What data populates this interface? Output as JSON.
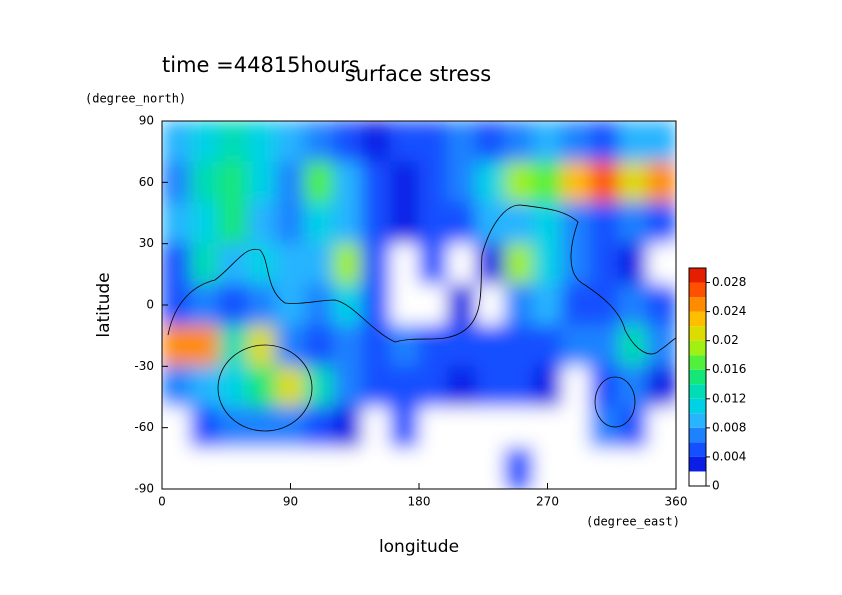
{
  "chart_data": {
    "type": "contour",
    "title": "surface stress",
    "subtitle": "time =44815hours",
    "xlabel": "longitude",
    "xunit": "(degree_east)",
    "ylabel": "latitude",
    "yunit": "(degree_north)",
    "xlim": [
      0,
      360
    ],
    "xticks": [
      0,
      90,
      180,
      270,
      360
    ],
    "ylim": [
      -90,
      90
    ],
    "yticks": [
      -90,
      -60,
      -30,
      0,
      30,
      60,
      90
    ],
    "x": [
      10,
      30,
      50,
      70,
      90,
      110,
      130,
      150,
      170,
      190,
      210,
      230,
      250,
      270,
      290,
      310,
      330,
      350
    ],
    "y": [
      80,
      60,
      40,
      20,
      0,
      -20,
      -40,
      -60,
      -80
    ],
    "z": [
      [
        0.008,
        0.01,
        0.012,
        0.01,
        0.008,
        0.006,
        0.004,
        0.002,
        0.004,
        0.004,
        0.006,
        0.004,
        0.006,
        0.008,
        0.006,
        0.004,
        0.008,
        0.008
      ],
      [
        0.006,
        0.012,
        0.014,
        0.01,
        0.006,
        0.016,
        0.008,
        0.004,
        0.002,
        0.004,
        0.006,
        0.01,
        0.018,
        0.016,
        0.022,
        0.026,
        0.02,
        0.024
      ],
      [
        0.008,
        0.01,
        0.014,
        0.008,
        0.006,
        0.01,
        0.008,
        0.004,
        0.002,
        0.004,
        0.004,
        0.008,
        0.008,
        0.01,
        0.006,
        0.004,
        0.006,
        0.004
      ],
      [
        0.004,
        0.012,
        0.008,
        0.01,
        0.008,
        0.008,
        0.018,
        0.004,
        0,
        0.004,
        0,
        0.002,
        0.018,
        0.01,
        0.006,
        0.004,
        0.002,
        0
      ],
      [
        0.004,
        0.006,
        0.004,
        0.006,
        0.008,
        0.006,
        0.01,
        0.004,
        0,
        0,
        0.002,
        0,
        0.006,
        0.008,
        0.004,
        0.004,
        0.006,
        0.004
      ],
      [
        0.024,
        0.024,
        0.012,
        0.02,
        0.006,
        0.004,
        0.006,
        0.004,
        0.006,
        0.004,
        0.004,
        0.004,
        0.004,
        0.004,
        0.006,
        0.006,
        0.012,
        0.006
      ],
      [
        0.006,
        0.008,
        0.01,
        0.014,
        0.02,
        0.012,
        0.006,
        0.004,
        0.004,
        0.004,
        0.002,
        0.004,
        0.004,
        0.002,
        0,
        0.004,
        0.006,
        0.002
      ],
      [
        0,
        0.004,
        0.006,
        0.006,
        0.006,
        0.004,
        0.002,
        0,
        0.004,
        0,
        0,
        0,
        0,
        0,
        0,
        0.006,
        0.004,
        0
      ],
      [
        0,
        0,
        0,
        0,
        0,
        0,
        0,
        0,
        0,
        0,
        0,
        0,
        0.004,
        0,
        0,
        0,
        0,
        0
      ]
    ],
    "zlim": [
      0,
      0.03
    ],
    "zticks": [
      0,
      0.004,
      0.008,
      0.012,
      0.016,
      0.02,
      0.024,
      0.028
    ],
    "colors": [
      "#ffffff",
      "#0a1ee6",
      "#1450ff",
      "#1e82ff",
      "#28b4ff",
      "#00d2e6",
      "#00dcb4",
      "#14e678",
      "#50f03c",
      "#a0f014",
      "#dcdc00",
      "#ffbe00",
      "#ff8c00",
      "#ff5000",
      "#e61e00"
    ]
  }
}
